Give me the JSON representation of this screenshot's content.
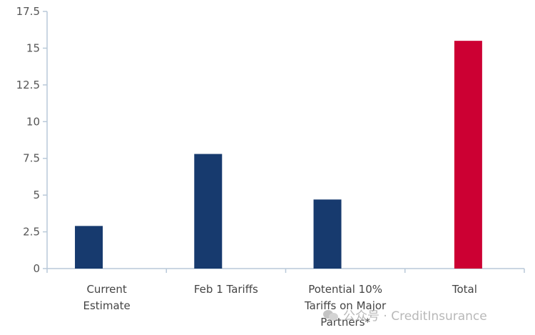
{
  "chart_data": {
    "type": "bar",
    "categories": [
      [
        "Current",
        "Estimate"
      ],
      [
        "Feb 1 Tariffs"
      ],
      [
        "Potential 10%",
        "Tariffs on Major",
        "Partners*"
      ],
      [
        "Total"
      ]
    ],
    "values": [
      2.9,
      7.8,
      4.7,
      15.5
    ],
    "bar_colors": [
      "#173a6e",
      "#173a6e",
      "#173a6e",
      "#cc0033"
    ],
    "ylim": [
      0,
      17.5
    ],
    "yticks": [
      "0",
      "2.5",
      "5",
      "7.5",
      "10",
      "12.5",
      "15",
      "17.5"
    ],
    "ytick_values": [
      0,
      2.5,
      5,
      7.5,
      10,
      12.5,
      15,
      17.5
    ],
    "grid": false,
    "axis_color": "#b9c9d9",
    "title": "",
    "xlabel": "",
    "ylabel": ""
  },
  "watermark": {
    "text": "公众号 · CreditInsurance",
    "icon": "wechat-icon"
  }
}
